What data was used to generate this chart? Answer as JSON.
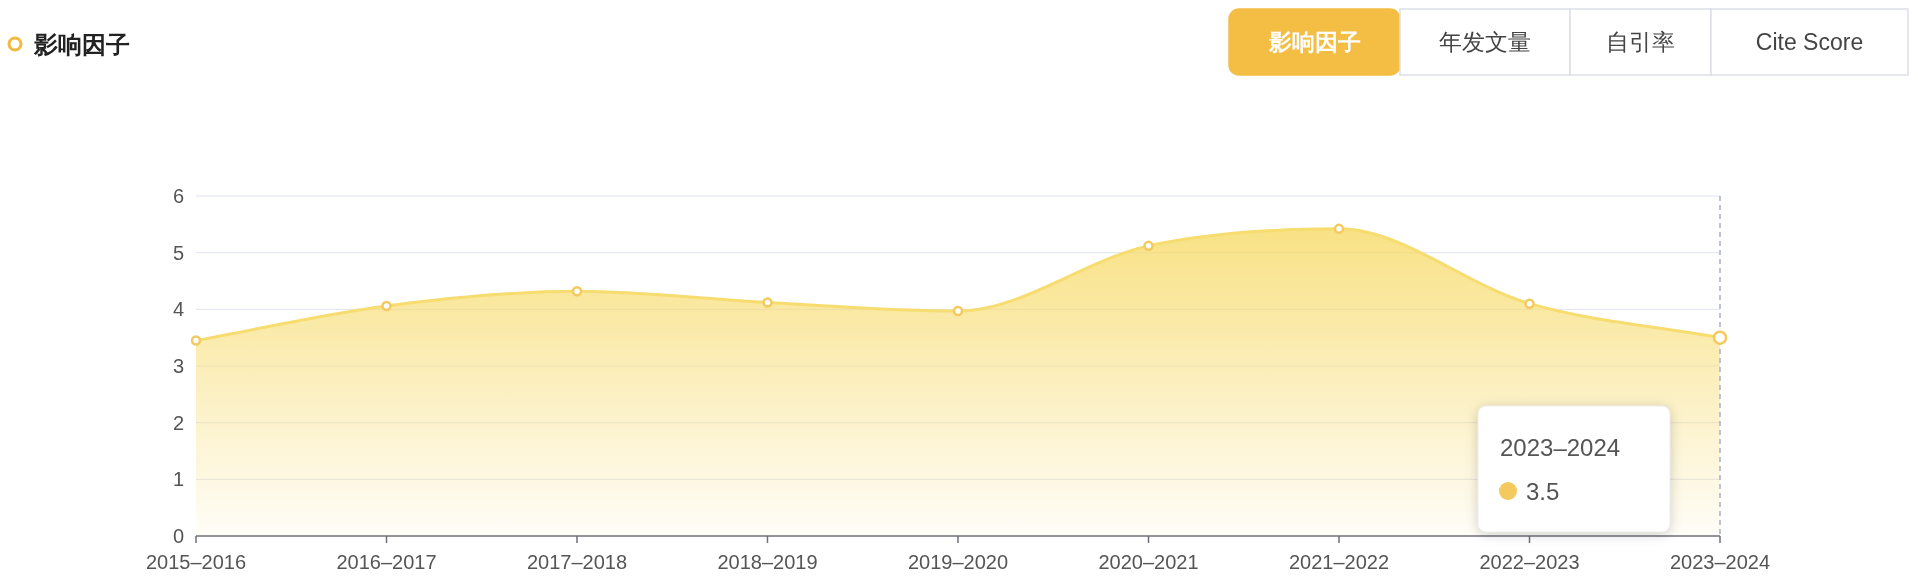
{
  "chart_data": {
    "type": "area",
    "title": "影响因子",
    "categories": [
      "2015–2016",
      "2016–2017",
      "2017–2018",
      "2018–2019",
      "2019–2020",
      "2020–2021",
      "2021–2022",
      "2022–2023",
      "2023–2024"
    ],
    "series": [
      {
        "color": "#f7dc6f",
        "values": [
          3.45,
          4.06,
          4.32,
          4.12,
          3.97,
          5.12,
          5.42,
          4.1,
          3.5
        ]
      }
    ],
    "ylim": [
      0,
      6
    ],
    "yticks": [
      0,
      1,
      2,
      3,
      4,
      5,
      6
    ],
    "grid": "y",
    "marker": "circle",
    "line_style": "solid",
    "ref_lines": [
      {
        "axis": "x",
        "value": "2023–2024",
        "line_style": "dashed",
        "color": "#a9b0c8"
      }
    ],
    "annotations": [
      "影响因子",
      "年发文量",
      "自引率",
      "Cite Score",
      "2023–2024",
      "3.5"
    ]
  }
}
